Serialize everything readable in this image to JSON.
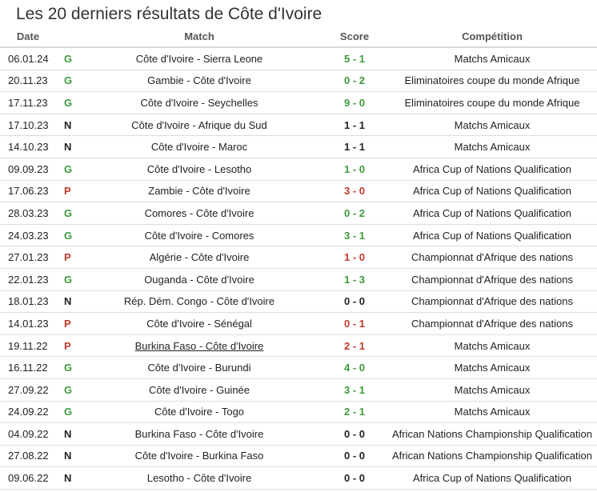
{
  "title": "Les 20 derniers résultats de Côte d'Ivoire",
  "headers": {
    "date": "Date",
    "match": "Match",
    "score": "Score",
    "competition": "Compétition"
  },
  "colors": {
    "win": "#3c9a3c",
    "draw": "#222222",
    "loss": "#c0392b"
  },
  "rows": [
    {
      "date": "06.01.24",
      "result": "G",
      "match": "Côte d'Ivoire - Sierra Leone",
      "score": "5 - 1",
      "competition": "Matchs Amicaux"
    },
    {
      "date": "20.11.23",
      "result": "G",
      "match": "Gambie - Côte d'Ivoire",
      "score": "0 - 2",
      "competition": "Eliminatoires coupe du monde Afrique"
    },
    {
      "date": "17.11.23",
      "result": "G",
      "match": "Côte d'Ivoire - Seychelles",
      "score": "9 - 0",
      "competition": "Eliminatoires coupe du monde Afrique"
    },
    {
      "date": "17.10.23",
      "result": "N",
      "match": "Côte d'Ivoire - Afrique du Sud",
      "score": "1 - 1",
      "competition": "Matchs Amicaux"
    },
    {
      "date": "14.10.23",
      "result": "N",
      "match": "Côte d'Ivoire - Maroc",
      "score": "1 - 1",
      "competition": "Matchs Amicaux"
    },
    {
      "date": "09.09.23",
      "result": "G",
      "match": "Côte d'Ivoire - Lesotho",
      "score": "1 - 0",
      "competition": "Africa Cup of Nations Qualification"
    },
    {
      "date": "17.06.23",
      "result": "P",
      "match": "Zambie - Côte d'Ivoire",
      "score": "3 - 0",
      "competition": "Africa Cup of Nations Qualification"
    },
    {
      "date": "28.03.23",
      "result": "G",
      "match": "Comores - Côte d'Ivoire",
      "score": "0 - 2",
      "competition": "Africa Cup of Nations Qualification"
    },
    {
      "date": "24.03.23",
      "result": "G",
      "match": "Côte d'Ivoire - Comores",
      "score": "3 - 1",
      "competition": "Africa Cup of Nations Qualification"
    },
    {
      "date": "27.01.23",
      "result": "P",
      "match": "Algérie - Côte d'Ivoire",
      "score": "1 - 0",
      "competition": "Championnat d'Afrique des nations"
    },
    {
      "date": "22.01.23",
      "result": "G",
      "match": "Ouganda - Côte d'Ivoire",
      "score": "1 - 3",
      "competition": "Championnat d'Afrique des nations"
    },
    {
      "date": "18.01.23",
      "result": "N",
      "match": "Rép. Dém. Congo - Côte d'Ivoire",
      "score": "0 - 0",
      "competition": "Championnat d'Afrique des nations"
    },
    {
      "date": "14.01.23",
      "result": "P",
      "match": "Côte d'Ivoire - Sénégal",
      "score": "0 - 1",
      "competition": "Championnat d'Afrique des nations"
    },
    {
      "date": "19.11.22",
      "result": "P",
      "match": "Burkina Faso - Côte d'Ivoire",
      "score": "2 - 1",
      "competition": "Matchs Amicaux",
      "link": true
    },
    {
      "date": "16.11.22",
      "result": "G",
      "match": "Côte d'Ivoire - Burundi",
      "score": "4 - 0",
      "competition": "Matchs Amicaux"
    },
    {
      "date": "27.09.22",
      "result": "G",
      "match": "Côte d'Ivoire - Guinée",
      "score": "3 - 1",
      "competition": "Matchs Amicaux"
    },
    {
      "date": "24.09.22",
      "result": "G",
      "match": "Côte d'Ivoire - Togo",
      "score": "2 - 1",
      "competition": "Matchs Amicaux"
    },
    {
      "date": "04.09.22",
      "result": "N",
      "match": "Burkina Faso - Côte d'Ivoire",
      "score": "0 - 0",
      "competition": "African Nations Championship Qualification"
    },
    {
      "date": "27.08.22",
      "result": "N",
      "match": "Côte d'Ivoire - Burkina Faso",
      "score": "0 - 0",
      "competition": "African Nations Championship Qualification"
    },
    {
      "date": "09.06.22",
      "result": "N",
      "match": "Lesotho - Côte d'Ivoire",
      "score": "0 - 0",
      "competition": "Africa Cup of Nations Qualification"
    }
  ]
}
